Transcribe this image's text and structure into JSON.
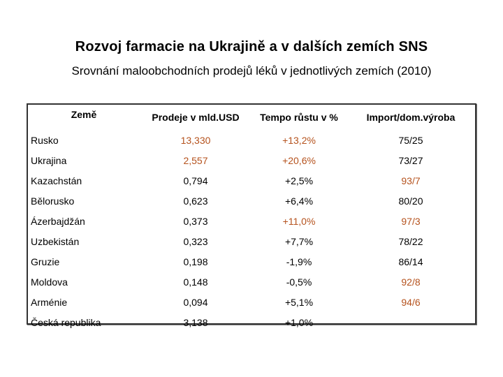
{
  "slide": {
    "title": "Rozvoj farmacie na Ukrajině a v dalších zemích SNS",
    "subtitle": "Srovnání maloobchodních prodejů léků v jednotlivých zemích (2010)"
  },
  "table": {
    "headers": [
      "Země",
      "Prodeje v mld.USD",
      "Tempo růstu v %",
      "Import/dom.výroba"
    ],
    "rows": [
      {
        "country": "Rusko",
        "sales": "13,330",
        "growth": "+13,2%",
        "ratio": "75/25"
      },
      {
        "country": "Ukrajina",
        "sales": "2,557",
        "growth": "+20,6%",
        "ratio": "73/27"
      },
      {
        "country": "Kazachstán",
        "sales": "0,794",
        "growth": "+2,5%",
        "ratio": "93/7"
      },
      {
        "country": "Bělorusko",
        "sales": "0,623",
        "growth": "+6,4%",
        "ratio": "80/20"
      },
      {
        "country": "Ázerbajdžán",
        "sales": "0,373",
        "growth": "+11,0%",
        "ratio": "97/3"
      },
      {
        "country": "Uzbekistán",
        "sales": "0,323",
        "growth": "+7,7%",
        "ratio": "78/22"
      },
      {
        "country": "Gruzie",
        "sales": "0,198",
        "growth": "-1,9%",
        "ratio": "86/14"
      },
      {
        "country": "Moldova",
        "sales": "0,148",
        "growth": "-0,5%",
        "ratio": "92/8"
      },
      {
        "country": "Arménie",
        "sales": "0,094",
        "growth": "+5,1%",
        "ratio": "94/6"
      },
      {
        "country": "Česká republika",
        "sales": "3,138",
        "growth": "+1,0%",
        "ratio": ""
      }
    ]
  },
  "colors": {
    "highlight": "#b5521d",
    "text": "#000000",
    "border": "#333333"
  }
}
